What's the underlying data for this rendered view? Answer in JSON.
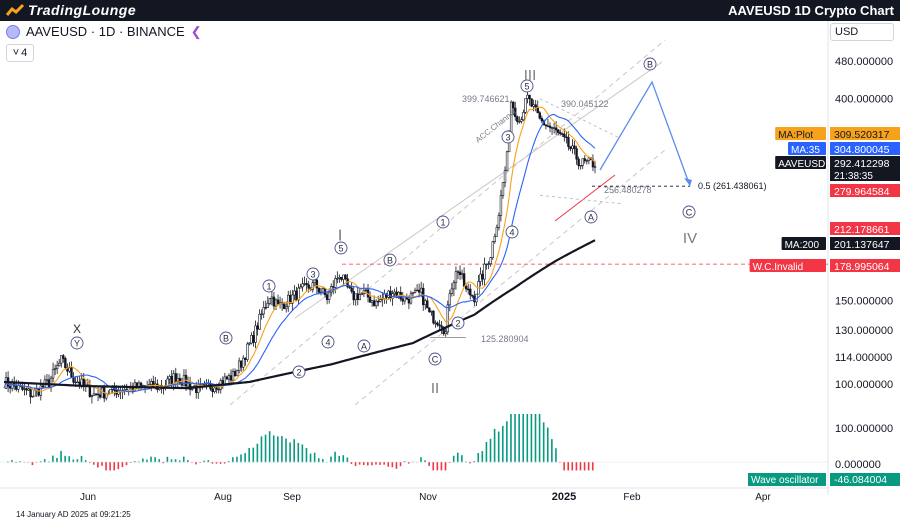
{
  "header": {
    "logo_text": "TradingLounge",
    "title": "AAVEUSD 1D Crypto Chart"
  },
  "symbol_bar": {
    "symbol": "AAVEUSD · 1D · BINANCE",
    "collapse_count": "4",
    "currency": "USD"
  },
  "footer": {
    "timestamp": "14 January AD 2025 at 09:21:25"
  },
  "colors": {
    "ma_plot": "#f7a21b",
    "ma_35": "#2962ff",
    "ma_200": "#131722",
    "up": "#089981",
    "down": "#f23645",
    "projection": "#5b8def"
  },
  "chart_data": {
    "type": "candlestick",
    "title": "AAVEUSD · 1D · BINANCE",
    "scale": "log",
    "ylim": [
      83,
      560
    ],
    "y_ticks": [
      {
        "value": 480,
        "label": "480.000000"
      },
      {
        "value": 400,
        "label": "400.000000"
      },
      {
        "value": 150,
        "label": "150.000000"
      },
      {
        "value": 130,
        "label": "130.000000"
      },
      {
        "value": 114,
        "label": "114.000000"
      },
      {
        "value": 100,
        "label": "100.000000"
      }
    ],
    "x_ticks": [
      "Jun",
      "Aug",
      "Sep",
      "Nov",
      "2025",
      "Feb",
      "Apr"
    ],
    "price_labels": [
      {
        "name": "MA:Plot",
        "value": "309.520317",
        "color": "#f7a21b"
      },
      {
        "name": "MA:35",
        "value": "304.800045",
        "color": "#2962ff"
      },
      {
        "name": "AAVEUSD",
        "value": "292.412298",
        "sub": "21:38:35",
        "color": "#131722"
      },
      {
        "name": "",
        "value": "279.964584",
        "color": "#f23645"
      },
      {
        "name": "",
        "value": "212.178661",
        "color": "#f23645"
      },
      {
        "name": "MA:200",
        "value": "201.137647",
        "color": "#131722"
      },
      {
        "name": "W.C.Invalid",
        "value": "178.995064",
        "color": "#f23645"
      }
    ],
    "wave_oscillator": {
      "label": "Wave oscillator",
      "value": "-46.084004",
      "ticks": [
        {
          "value": 100,
          "label": "100.000000"
        },
        {
          "value": 0,
          "label": "0.000000"
        }
      ]
    },
    "annotations": {
      "price_notes": [
        "399.746621",
        "390.045122",
        "256.480278",
        "125.280904"
      ],
      "fib_label": "0.5 (261.438061)",
      "channel_label": "ACC.Channel",
      "wave_labels_circled": [
        "X",
        "Y",
        "B",
        "1",
        "2",
        "3",
        "4",
        "5",
        "A",
        "B",
        "C",
        "1",
        "2",
        "3",
        "4",
        "5",
        "A",
        "B",
        "C"
      ],
      "wave_labels_plain": [
        "III",
        "IV",
        "II"
      ]
    }
  }
}
